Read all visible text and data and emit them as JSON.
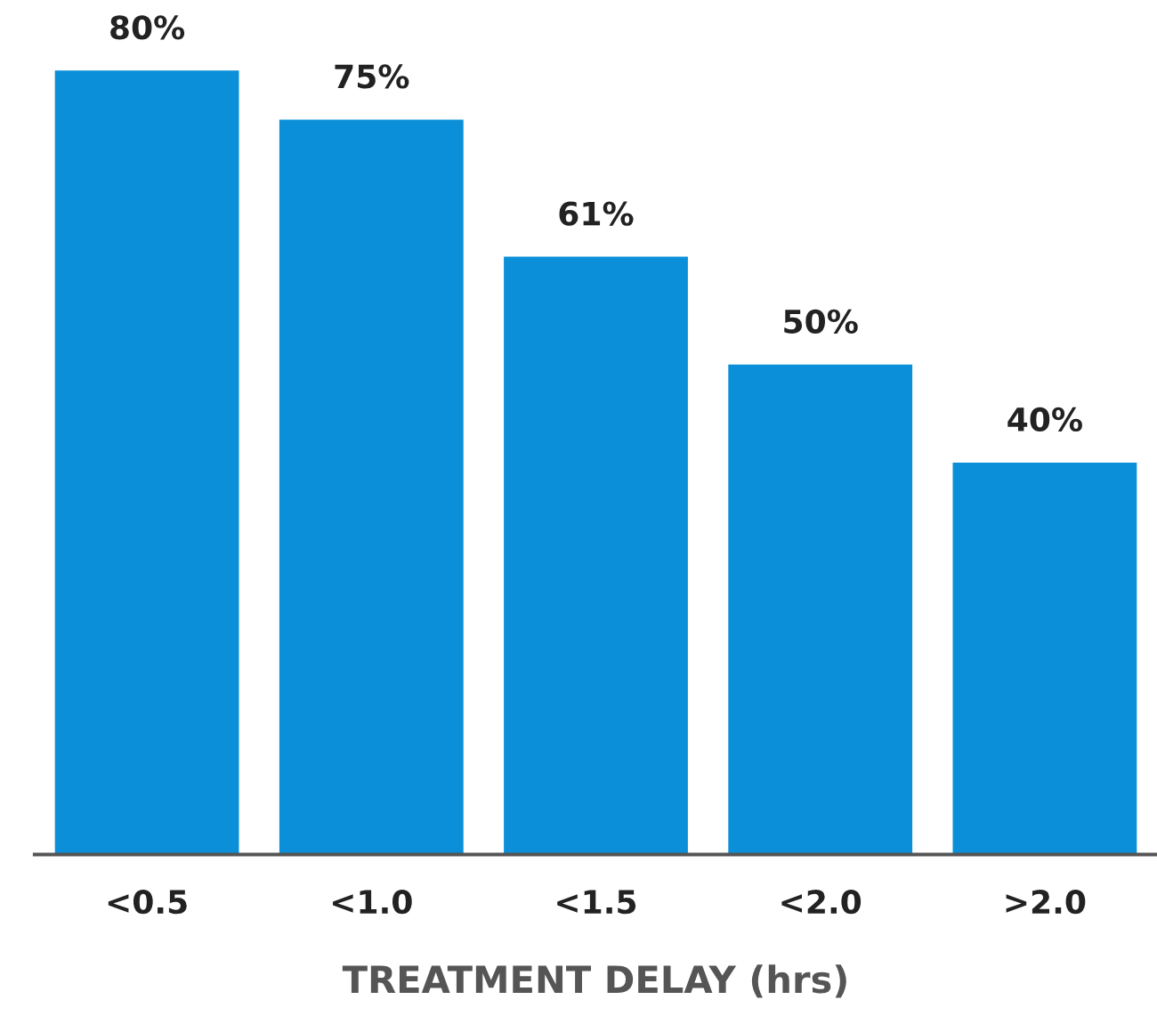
{
  "chart_data": {
    "type": "bar",
    "xlabel": "TREATMENT DELAY (hrs)",
    "categories": [
      "<0.5",
      "<1.0",
      "<1.5",
      "<2.0",
      ">2.0"
    ],
    "values": [
      80,
      75,
      61,
      50,
      40
    ],
    "value_labels": [
      "80%",
      "75%",
      "61%",
      "50%",
      "40%"
    ],
    "color": "#0a8fd8",
    "grid": false,
    "legend": false,
    "tick_labels": "x"
  }
}
